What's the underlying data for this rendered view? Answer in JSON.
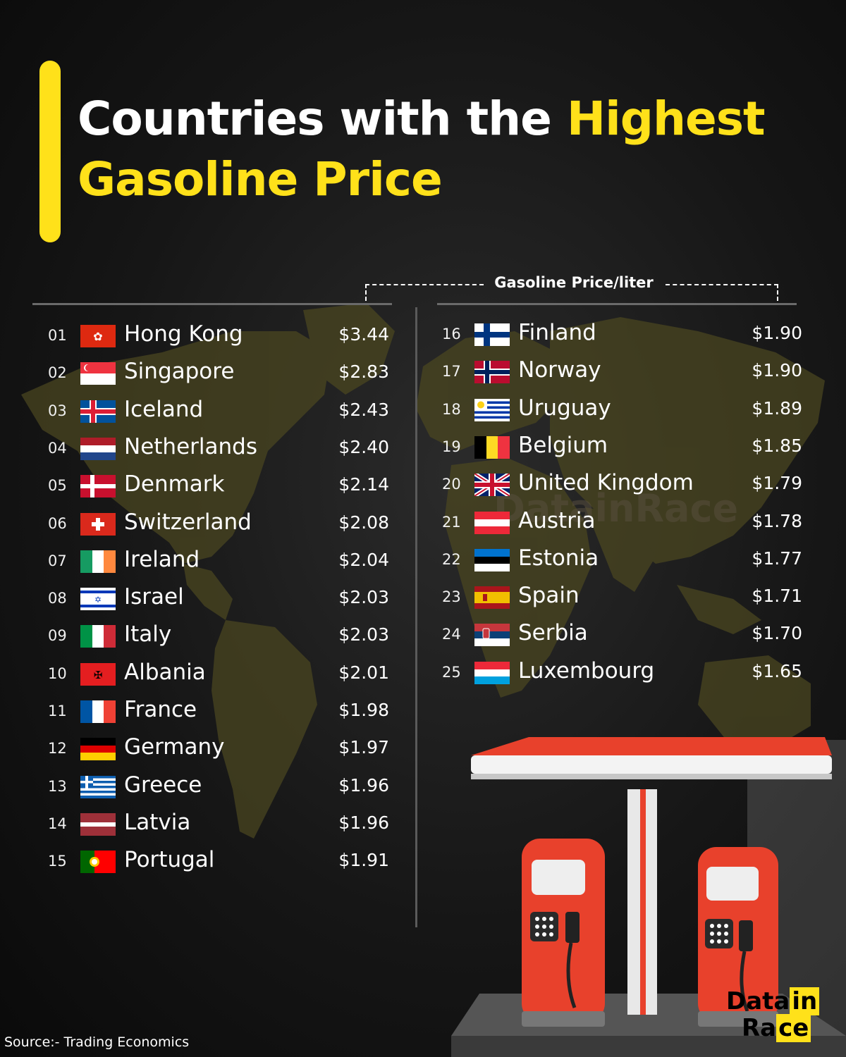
{
  "title": {
    "white": "Countries with the ",
    "yellow1": "Highest",
    "yellow2": "Gasoline Price"
  },
  "column_header": "Gasoline Price/liter",
  "source": "Source:- Trading Economics",
  "logo": {
    "line1_a": "Data",
    "line1_b": "in",
    "line2_a": "Ra",
    "line2_b": "ce"
  },
  "colors": {
    "accent": "#ffe11a",
    "background": "#111111",
    "map": "#4a4620",
    "pump_red": "#e8412c"
  },
  "chart_data": {
    "type": "table",
    "title": "Countries with the Highest Gasoline Price",
    "value_label": "Gasoline Price/liter",
    "rows": [
      {
        "rank": "01",
        "country": "Hong Kong",
        "flag": "hk-flag",
        "price": "$3.44",
        "value": 3.44
      },
      {
        "rank": "02",
        "country": "Singapore",
        "flag": "sg-flag",
        "price": "$2.83",
        "value": 2.83
      },
      {
        "rank": "03",
        "country": "Iceland",
        "flag": "is-flag",
        "price": "$2.43",
        "value": 2.43
      },
      {
        "rank": "04",
        "country": "Netherlands",
        "flag": "nl-flag",
        "price": "$2.40",
        "value": 2.4
      },
      {
        "rank": "05",
        "country": "Denmark",
        "flag": "dk-flag",
        "price": "$2.14",
        "value": 2.14
      },
      {
        "rank": "06",
        "country": "Switzerland",
        "flag": "ch-flag",
        "price": "$2.08",
        "value": 2.08
      },
      {
        "rank": "07",
        "country": "Ireland",
        "flag": "ie-flag",
        "price": "$2.04",
        "value": 2.04
      },
      {
        "rank": "08",
        "country": "Israel",
        "flag": "il-flag",
        "price": "$2.03",
        "value": 2.03
      },
      {
        "rank": "09",
        "country": "Italy",
        "flag": "it-flag",
        "price": "$2.03",
        "value": 2.03
      },
      {
        "rank": "10",
        "country": "Albania",
        "flag": "al-flag",
        "price": "$2.01",
        "value": 2.01
      },
      {
        "rank": "11",
        "country": "France",
        "flag": "fr-flag",
        "price": "$1.98",
        "value": 1.98
      },
      {
        "rank": "12",
        "country": "Germany",
        "flag": "de-flag",
        "price": "$1.97",
        "value": 1.97
      },
      {
        "rank": "13",
        "country": "Greece",
        "flag": "gr-flag",
        "price": "$1.96",
        "value": 1.96
      },
      {
        "rank": "14",
        "country": "Latvia",
        "flag": "lv-flag",
        "price": "$1.96",
        "value": 1.96
      },
      {
        "rank": "15",
        "country": "Portugal",
        "flag": "pt-flag",
        "price": "$1.91",
        "value": 1.91
      },
      {
        "rank": "16",
        "country": "Finland",
        "flag": "fi-flag",
        "price": "$1.90",
        "value": 1.9
      },
      {
        "rank": "17",
        "country": "Norway",
        "flag": "no-flag",
        "price": "$1.90",
        "value": 1.9
      },
      {
        "rank": "18",
        "country": "Uruguay",
        "flag": "uy-flag",
        "price": "$1.89",
        "value": 1.89
      },
      {
        "rank": "19",
        "country": "Belgium",
        "flag": "be-flag",
        "price": "$1.85",
        "value": 1.85
      },
      {
        "rank": "20",
        "country": "United Kingdom",
        "flag": "gb-flag",
        "price": "$1.79",
        "value": 1.79
      },
      {
        "rank": "21",
        "country": "Austria",
        "flag": "at-flag",
        "price": "$1.78",
        "value": 1.78
      },
      {
        "rank": "22",
        "country": "Estonia",
        "flag": "ee-flag",
        "price": "$1.77",
        "value": 1.77
      },
      {
        "rank": "23",
        "country": "Spain",
        "flag": "es-flag",
        "price": "$1.71",
        "value": 1.71
      },
      {
        "rank": "24",
        "country": "Serbia",
        "flag": "rs-flag",
        "price": "$1.70",
        "value": 1.7
      },
      {
        "rank": "25",
        "country": "Luxembourg",
        "flag": "lu-flag",
        "price": "$1.65",
        "value": 1.65
      }
    ]
  }
}
